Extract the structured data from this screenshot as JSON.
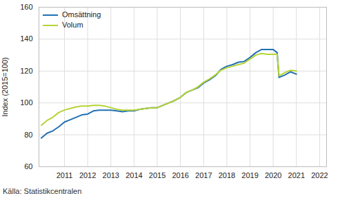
{
  "chart_data": {
    "type": "line",
    "y_label": "Index (2015=100)",
    "caption": "Källa: Statistikcentralen",
    "legend": "top-left",
    "grid": true,
    "xlim": [
      2009.9,
      2022.3
    ],
    "xticks": [
      2011,
      2012,
      2013,
      2014,
      2015,
      2016,
      2017,
      2018,
      2019,
      2020,
      2021,
      2022
    ],
    "ylim": [
      60,
      160
    ],
    "yticks": [
      60,
      80,
      100,
      120,
      140,
      160
    ],
    "x": [
      2010.0,
      2010.25,
      2010.5,
      2010.75,
      2011.0,
      2011.25,
      2011.5,
      2011.75,
      2012.0,
      2012.25,
      2012.5,
      2012.75,
      2013.0,
      2013.25,
      2013.5,
      2013.75,
      2014.0,
      2014.25,
      2014.5,
      2014.75,
      2015.0,
      2015.25,
      2015.5,
      2015.75,
      2016.0,
      2016.25,
      2016.5,
      2016.75,
      2017.0,
      2017.25,
      2017.5,
      2017.75,
      2018.0,
      2018.25,
      2018.5,
      2018.75,
      2019.0,
      2019.25,
      2019.5,
      2019.75,
      2020.0,
      2020.17,
      2020.25,
      2020.5,
      2020.75,
      2021.0
    ],
    "series": [
      {
        "name": "Omsättning",
        "color": "#1f6fb2",
        "values": [
          78,
          81,
          82.5,
          85,
          88,
          89.5,
          91,
          92.5,
          93,
          95,
          95.5,
          95.5,
          95.5,
          95,
          94.5,
          95,
          95,
          96,
          96.5,
          97,
          97,
          98.5,
          100,
          101.5,
          103.5,
          106.5,
          108,
          109.5,
          112.5,
          114.5,
          117,
          121,
          123,
          124,
          125.5,
          126,
          128.5,
          131.5,
          133.5,
          133.5,
          133.5,
          131.5,
          116,
          117.5,
          119.5,
          118
        ]
      },
      {
        "name": "Volum",
        "color": "#b5d334",
        "values": [
          86,
          89,
          91,
          94,
          95.5,
          96.5,
          97.5,
          98,
          98,
          98.5,
          98.5,
          98,
          97,
          96,
          95.5,
          95.5,
          95.5,
          96,
          96.5,
          97,
          97,
          98.5,
          100,
          101.5,
          103.5,
          106.5,
          108,
          110,
          113,
          115,
          117.5,
          120.5,
          122,
          123,
          124,
          125,
          127.5,
          130,
          131,
          130.5,
          130.5,
          130.5,
          117,
          119,
          120.5,
          120
        ]
      }
    ]
  }
}
